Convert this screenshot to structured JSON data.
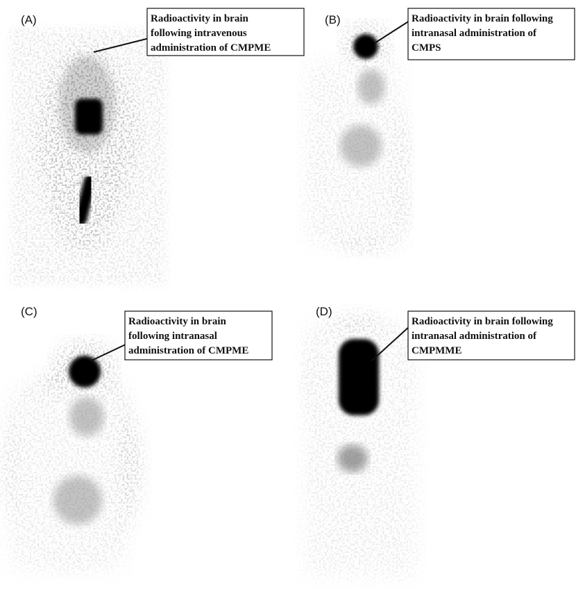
{
  "panels": [
    {
      "label": "(A)",
      "annotation": [
        "Radioactivity in brain",
        "following intravenous",
        "administration of CMPME"
      ]
    },
    {
      "label": "(B)",
      "annotation": [
        "Radioactivity in brain following",
        "intranasal  administration of",
        "CMPS"
      ]
    },
    {
      "label": "(C)",
      "annotation": [
        "Radioactivity in brain",
        "following intranasal",
        "administration of CMPME"
      ]
    },
    {
      "label": "(D)",
      "annotation": [
        "Radioactivity in brain following",
        "intranasal  administration of",
        "CMPMME"
      ]
    }
  ]
}
